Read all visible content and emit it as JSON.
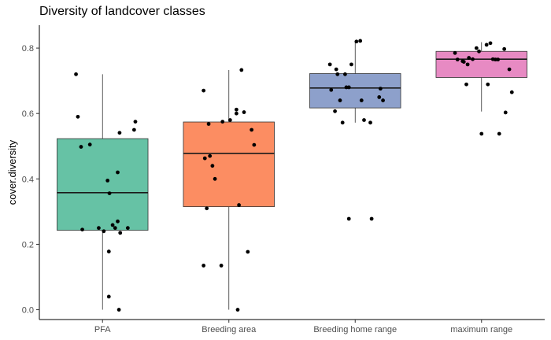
{
  "chart_data": {
    "type": "boxplot",
    "title": "Diversity of landcover classes",
    "xlabel": "",
    "ylabel": "cover.diversity",
    "ylim": [
      -0.03,
      0.87
    ],
    "y_ticks": [
      0.0,
      0.2,
      0.4,
      0.6,
      0.8
    ],
    "y_tick_labels": [
      "0.0",
      "0.2",
      "0.4",
      "0.6",
      "0.8"
    ],
    "grid": false,
    "legend": "none",
    "categories": [
      "PFA",
      "Breeding area",
      "Breeding home range",
      "maximum range"
    ],
    "colors": [
      "#66c2a5",
      "#fc8d62",
      "#8da0cb",
      "#e78ac3"
    ],
    "boxes": [
      {
        "category": "PFA",
        "whisker_low": 0.0,
        "q1": 0.243,
        "median": 0.358,
        "q3": 0.523,
        "whisker_high": 0.72
      },
      {
        "category": "Breeding area",
        "whisker_low": 0.0,
        "q1": 0.315,
        "median": 0.478,
        "q3": 0.574,
        "whisker_high": 0.733
      },
      {
        "category": "Breeding home range",
        "whisker_low": 0.572,
        "q1": 0.617,
        "median": 0.678,
        "q3": 0.722,
        "whisker_high": 0.822
      },
      {
        "category": "maximum range",
        "whisker_low": 0.606,
        "q1": 0.71,
        "median": 0.766,
        "q3": 0.79,
        "whisker_high": 0.818
      }
    ],
    "points": [
      {
        "category": "PFA",
        "x": [
          -0.42,
          -0.39,
          -0.34,
          -0.2,
          0.08,
          0.11,
          0.24,
          0.2,
          0.24,
          0.02,
          0.28,
          0.52,
          0.5,
          0.27,
          0.16,
          0.1,
          -0.32,
          -0.06,
          0.1,
          0.26,
          0.4
        ],
        "y": [
          0.72,
          0.59,
          0.498,
          0.505,
          0.395,
          0.356,
          0.27,
          0.25,
          0.42,
          0.24,
          0.235,
          0.575,
          0.55,
          0.541,
          0.259,
          0.178,
          0.245,
          0.25,
          0.04,
          0.0,
          0.25
        ]
      },
      {
        "category": "Breeding area",
        "x": [
          -0.4,
          -0.38,
          -0.3,
          -0.32,
          -0.26,
          -0.22,
          -0.1,
          0.02,
          0.12,
          0.24,
          0.4,
          0.36,
          0.2,
          0.12,
          -0.12,
          0.16,
          -0.4,
          0.3,
          -0.35,
          0.14
        ],
        "y": [
          0.67,
          0.463,
          0.47,
          0.568,
          0.44,
          0.4,
          0.575,
          0.58,
          0.612,
          0.604,
          0.504,
          0.55,
          0.733,
          0.6,
          0.135,
          0.32,
          0.135,
          0.177,
          0.31,
          0.0
        ]
      },
      {
        "category": "Breeding home range",
        "x": [
          -0.4,
          -0.3,
          -0.28,
          -0.16,
          -0.14,
          -0.1,
          -0.06,
          0.02,
          0.08,
          -0.38,
          -0.32,
          -0.2,
          -0.24,
          0.1,
          0.14,
          0.38,
          0.44,
          0.4,
          0.24,
          -0.1,
          0.26
        ],
        "y": [
          0.75,
          0.735,
          0.72,
          0.72,
          0.68,
          0.68,
          0.75,
          0.82,
          0.822,
          0.672,
          0.607,
          0.572,
          0.64,
          0.64,
          0.58,
          0.65,
          0.64,
          0.676,
          0.572,
          0.278,
          0.278
        ]
      },
      {
        "category": "maximum range",
        "x": [
          -0.42,
          -0.38,
          -0.3,
          -0.2,
          -0.14,
          -0.08,
          -0.04,
          0.08,
          0.14,
          0.18,
          0.22,
          0.26,
          0.36,
          0.44,
          0.48,
          -0.24,
          0.0,
          0.28,
          -0.22,
          -0.28,
          0.1,
          0.38
        ],
        "y": [
          0.785,
          0.765,
          0.76,
          0.77,
          0.766,
          0.8,
          0.79,
          0.81,
          0.815,
          0.766,
          0.765,
          0.765,
          0.797,
          0.735,
          0.665,
          0.689,
          0.538,
          0.538,
          0.75,
          0.758,
          0.689,
          0.603
        ]
      }
    ]
  }
}
